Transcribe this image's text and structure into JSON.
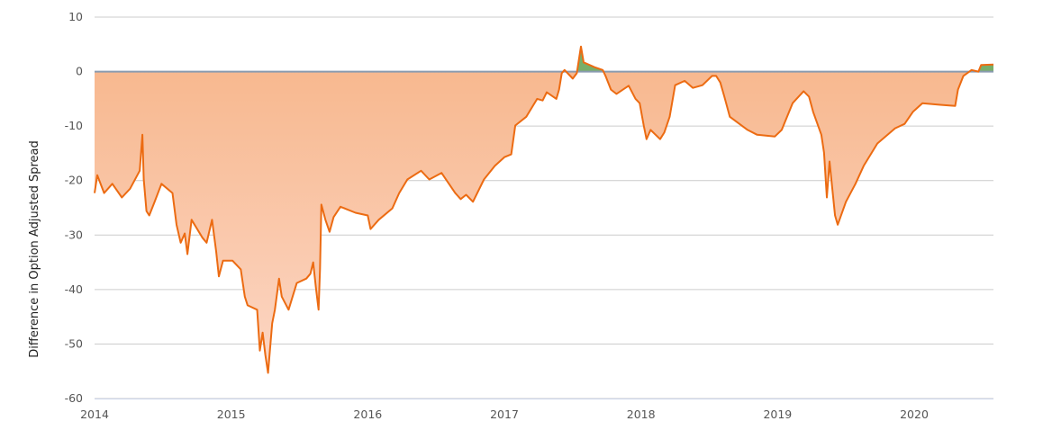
{
  "chart_data": {
    "type": "area",
    "title": "",
    "xlabel": "",
    "ylabel": "Difference in Option Adjusted Spread",
    "ylim": [
      -60,
      10
    ],
    "xlim": [
      2014.0,
      2020.58
    ],
    "yticks": [
      "10",
      "0",
      "-10",
      "-20",
      "-30",
      "-40",
      "-50",
      "-60"
    ],
    "xticks": [
      "2014",
      "2015",
      "2016",
      "2017",
      "2018",
      "2019",
      "2020"
    ],
    "grid": true,
    "legend": "none",
    "colors": {
      "line": "#ec6b12",
      "negative_fill_top": "#f7b68b",
      "negative_fill_bottom": "#fcd6c4",
      "positive_fill": "#78ae6a",
      "zero_line": "#8a9bb0",
      "grid": "#cccccc"
    },
    "series": [
      {
        "x": [
          2014.0,
          2014.02,
          2014.07,
          2014.13,
          2014.2,
          2014.26,
          2014.33,
          2014.35,
          2014.36,
          2014.38,
          2014.4,
          2014.44,
          2014.49,
          2014.57,
          2014.6,
          2014.63,
          2014.66,
          2014.68,
          2014.71,
          2014.79,
          2014.82,
          2014.86,
          2014.89,
          2014.91,
          2014.94,
          2015.01,
          2015.07,
          2015.1,
          2015.12,
          2015.19,
          2015.21,
          2015.23,
          2015.25,
          2015.27,
          2015.3,
          2015.32,
          2015.35,
          2015.37,
          2015.42,
          2015.48,
          2015.55,
          2015.58,
          2015.6,
          2015.62,
          2015.64,
          2015.65,
          2015.66,
          2015.69,
          2015.72,
          2015.75,
          2015.8,
          2015.91,
          2016.0,
          2016.02,
          2016.08,
          2016.18,
          2016.23,
          2016.29,
          2016.39,
          2016.45,
          2016.54,
          2016.64,
          2016.68,
          2016.72,
          2016.77,
          2016.85,
          2016.93,
          2017.0,
          2017.05,
          2017.08,
          2017.16,
          2017.24,
          2017.28,
          2017.31,
          2017.38,
          2017.4,
          2017.42,
          2017.44,
          2017.5,
          2017.53,
          2017.56,
          2017.58,
          2017.66,
          2017.72,
          2017.74,
          2017.78,
          2017.82,
          2017.91,
          2017.96,
          2017.99,
          2018.02,
          2018.04,
          2018.07,
          2018.14,
          2018.17,
          2018.21,
          2018.25,
          2018.32,
          2018.38,
          2018.45,
          2018.52,
          2018.55,
          2018.58,
          2018.61,
          2018.65,
          2018.78,
          2018.85,
          2018.98,
          2019.03,
          2019.11,
          2019.19,
          2019.23,
          2019.26,
          2019.32,
          2019.34,
          2019.36,
          2019.38,
          2019.42,
          2019.44,
          2019.5,
          2019.57,
          2019.63,
          2019.73,
          2019.86,
          2019.93,
          2019.99,
          2020.06,
          2020.19,
          2020.3,
          2020.32,
          2020.36,
          2020.42,
          2020.47,
          2020.49,
          2020.58
        ],
        "y": [
          -22.3,
          -19.0,
          -22.3,
          -20.6,
          -23.1,
          -21.5,
          -18.2,
          -11.6,
          -19.8,
          -25.6,
          -26.4,
          -23.9,
          -20.6,
          -22.3,
          -28.1,
          -31.4,
          -29.7,
          -33.5,
          -27.2,
          -30.5,
          -31.4,
          -27.2,
          -33.0,
          -37.6,
          -34.7,
          -34.7,
          -36.3,
          -41.3,
          -42.9,
          -43.7,
          -51.2,
          -47.9,
          -52.0,
          -55.3,
          -46.2,
          -43.7,
          -38.0,
          -41.3,
          -43.7,
          -38.8,
          -38.0,
          -37.1,
          -35.0,
          -39.6,
          -43.7,
          -36.3,
          -24.4,
          -27.2,
          -29.4,
          -26.7,
          -24.8,
          -25.9,
          -26.4,
          -28.9,
          -27.2,
          -25.1,
          -22.3,
          -19.8,
          -18.2,
          -19.8,
          -18.6,
          -22.3,
          -23.4,
          -22.6,
          -23.9,
          -19.8,
          -17.3,
          -15.7,
          -15.2,
          -9.9,
          -8.3,
          -5.0,
          -5.3,
          -3.8,
          -5.0,
          -3.3,
          -0.3,
          0.3,
          -1.3,
          -0.3,
          4.6,
          1.7,
          0.8,
          0.3,
          -0.8,
          -3.3,
          -4.1,
          -2.6,
          -5.0,
          -5.8,
          -9.9,
          -12.4,
          -10.7,
          -12.4,
          -11.2,
          -8.3,
          -2.5,
          -1.7,
          -3.0,
          -2.5,
          -0.8,
          -0.8,
          -2.0,
          -4.6,
          -8.3,
          -10.7,
          -11.6,
          -11.9,
          -10.7,
          -5.8,
          -3.6,
          -4.6,
          -7.4,
          -11.6,
          -14.9,
          -23.1,
          -16.5,
          -26.4,
          -28.1,
          -23.9,
          -20.6,
          -17.3,
          -13.2,
          -10.4,
          -9.6,
          -7.4,
          -5.8,
          -6.1,
          -6.3,
          -3.3,
          -0.8,
          0.3,
          0.0,
          1.2,
          1.3
        ]
      }
    ]
  }
}
